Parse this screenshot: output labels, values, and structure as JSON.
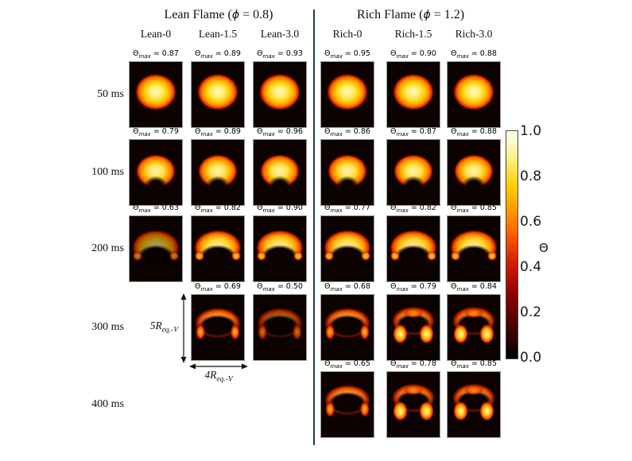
{
  "header": {
    "lean": {
      "pre": "Lean Flame (",
      "phi": "ϕ",
      "post": " = 0.8)"
    },
    "rich": {
      "pre": "Rich Flame (",
      "phi": "ϕ",
      "post": " = 1.2)"
    },
    "lean_columns": [
      "Lean-0",
      "Lean-1.5",
      "Lean-3.0"
    ],
    "rich_columns": [
      "Rich-0",
      "Rich-1.5",
      "Rich-3.0"
    ]
  },
  "labels": {
    "theta_symbol": "Θ",
    "max_subscript": "max",
    "equals": " = "
  },
  "grid": {
    "rows": [
      {
        "time": "50 ms",
        "cells": [
          {
            "value": "0.87",
            "shape": "ball"
          },
          {
            "value": "0.89",
            "shape": "ball"
          },
          {
            "value": "0.93",
            "shape": "ball"
          },
          {
            "value": "0.95",
            "shape": "ball"
          },
          {
            "value": "0.90",
            "shape": "ball"
          },
          {
            "value": "0.88",
            "shape": "ball"
          }
        ]
      },
      {
        "time": "100 ms",
        "cells": [
          {
            "value": "0.79",
            "shape": "crescent"
          },
          {
            "value": "0.89",
            "shape": "crescent"
          },
          {
            "value": "0.96",
            "shape": "crescent"
          },
          {
            "value": "0.86",
            "shape": "crescent"
          },
          {
            "value": "0.87",
            "shape": "crescent"
          },
          {
            "value": "0.88",
            "shape": "crescent"
          }
        ]
      },
      {
        "time": "200 ms",
        "cells": [
          {
            "value": "0.63",
            "shape": "umbrella",
            "dim": true
          },
          {
            "value": "0.82",
            "shape": "umbrella"
          },
          {
            "value": "0.90",
            "shape": "umbrella"
          },
          {
            "value": "0.77",
            "shape": "umbrella"
          },
          {
            "value": "0.82",
            "shape": "umbrella"
          },
          {
            "value": "0.85",
            "shape": "umbrella"
          }
        ]
      },
      {
        "time": "300 ms",
        "cells": [
          null,
          {
            "value": "0.69",
            "shape": "thin-cap"
          },
          {
            "value": "0.50",
            "shape": "thin-cap",
            "dim": true
          },
          {
            "value": "0.68",
            "shape": "thin-cap"
          },
          {
            "value": "0.79",
            "shape": "mushroom"
          },
          {
            "value": "0.84",
            "shape": "mushroom"
          }
        ]
      },
      {
        "time": "400 ms",
        "cells": [
          null,
          null,
          null,
          {
            "value": "0.65",
            "shape": "thin-cap"
          },
          {
            "value": "0.78",
            "shape": "mushroom"
          },
          {
            "value": "0.85",
            "shape": "mushroom"
          }
        ]
      }
    ]
  },
  "annotations": {
    "height": {
      "coef": "5R",
      "sub": "eq.-V"
    },
    "width": {
      "coef": "4R",
      "sub": "eq.-V"
    }
  },
  "colorbar": {
    "ticks": [
      "1.0",
      "0.8",
      "0.6",
      "0.4",
      "0.2",
      "0.0"
    ],
    "label": "Θ",
    "min": 0.0,
    "max": 1.0,
    "colormap": "hot"
  },
  "chart_data": {
    "type": "heatmap",
    "description": "Grid of flame temperature field snapshots (Θ) over time for lean and rich flames",
    "column_groups": [
      {
        "group": "Lean Flame (ϕ = 0.8)",
        "columns": [
          "Lean-0",
          "Lean-1.5",
          "Lean-3.0"
        ]
      },
      {
        "group": "Rich Flame (ϕ = 1.2)",
        "columns": [
          "Rich-0",
          "Rich-1.5",
          "Rich-3.0"
        ]
      }
    ],
    "rows": [
      "50 ms",
      "100 ms",
      "200 ms",
      "300 ms",
      "400 ms"
    ],
    "theta_max": [
      [
        0.87,
        0.89,
        0.93,
        0.95,
        0.9,
        0.88
      ],
      [
        0.79,
        0.89,
        0.96,
        0.86,
        0.87,
        0.88
      ],
      [
        0.63,
        0.82,
        0.9,
        0.77,
        0.82,
        0.85
      ],
      [
        null,
        0.69,
        0.5,
        0.68,
        0.79,
        0.84
      ],
      [
        null,
        null,
        null,
        0.65,
        0.78,
        0.85
      ]
    ],
    "colorbar": {
      "label": "Θ",
      "range": [
        0.0,
        1.0
      ],
      "ticks": [
        1.0,
        0.8,
        0.6,
        0.4,
        0.2,
        0.0
      ],
      "colormap": "hot"
    },
    "scale_annotations": {
      "panel_height": "5R_eq.-V",
      "panel_width": "4R_eq.-V"
    }
  }
}
